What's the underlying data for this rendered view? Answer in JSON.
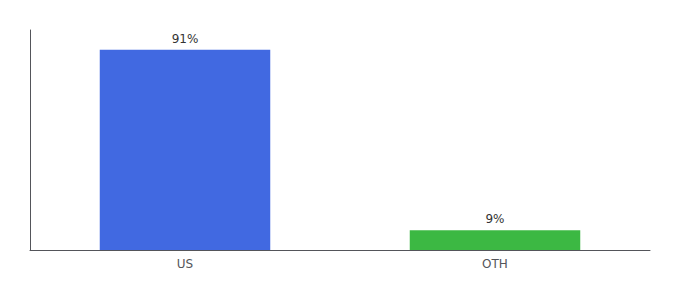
{
  "chart_data": {
    "type": "bar",
    "categories": [
      "US",
      "OTH"
    ],
    "values": [
      91,
      9
    ],
    "value_labels": [
      "91%",
      "9%"
    ],
    "colors": [
      "#4169e1",
      "#3cb843"
    ],
    "ylim": [
      0,
      100
    ],
    "grid": false,
    "data_labels": true,
    "tick_labels": "x"
  }
}
